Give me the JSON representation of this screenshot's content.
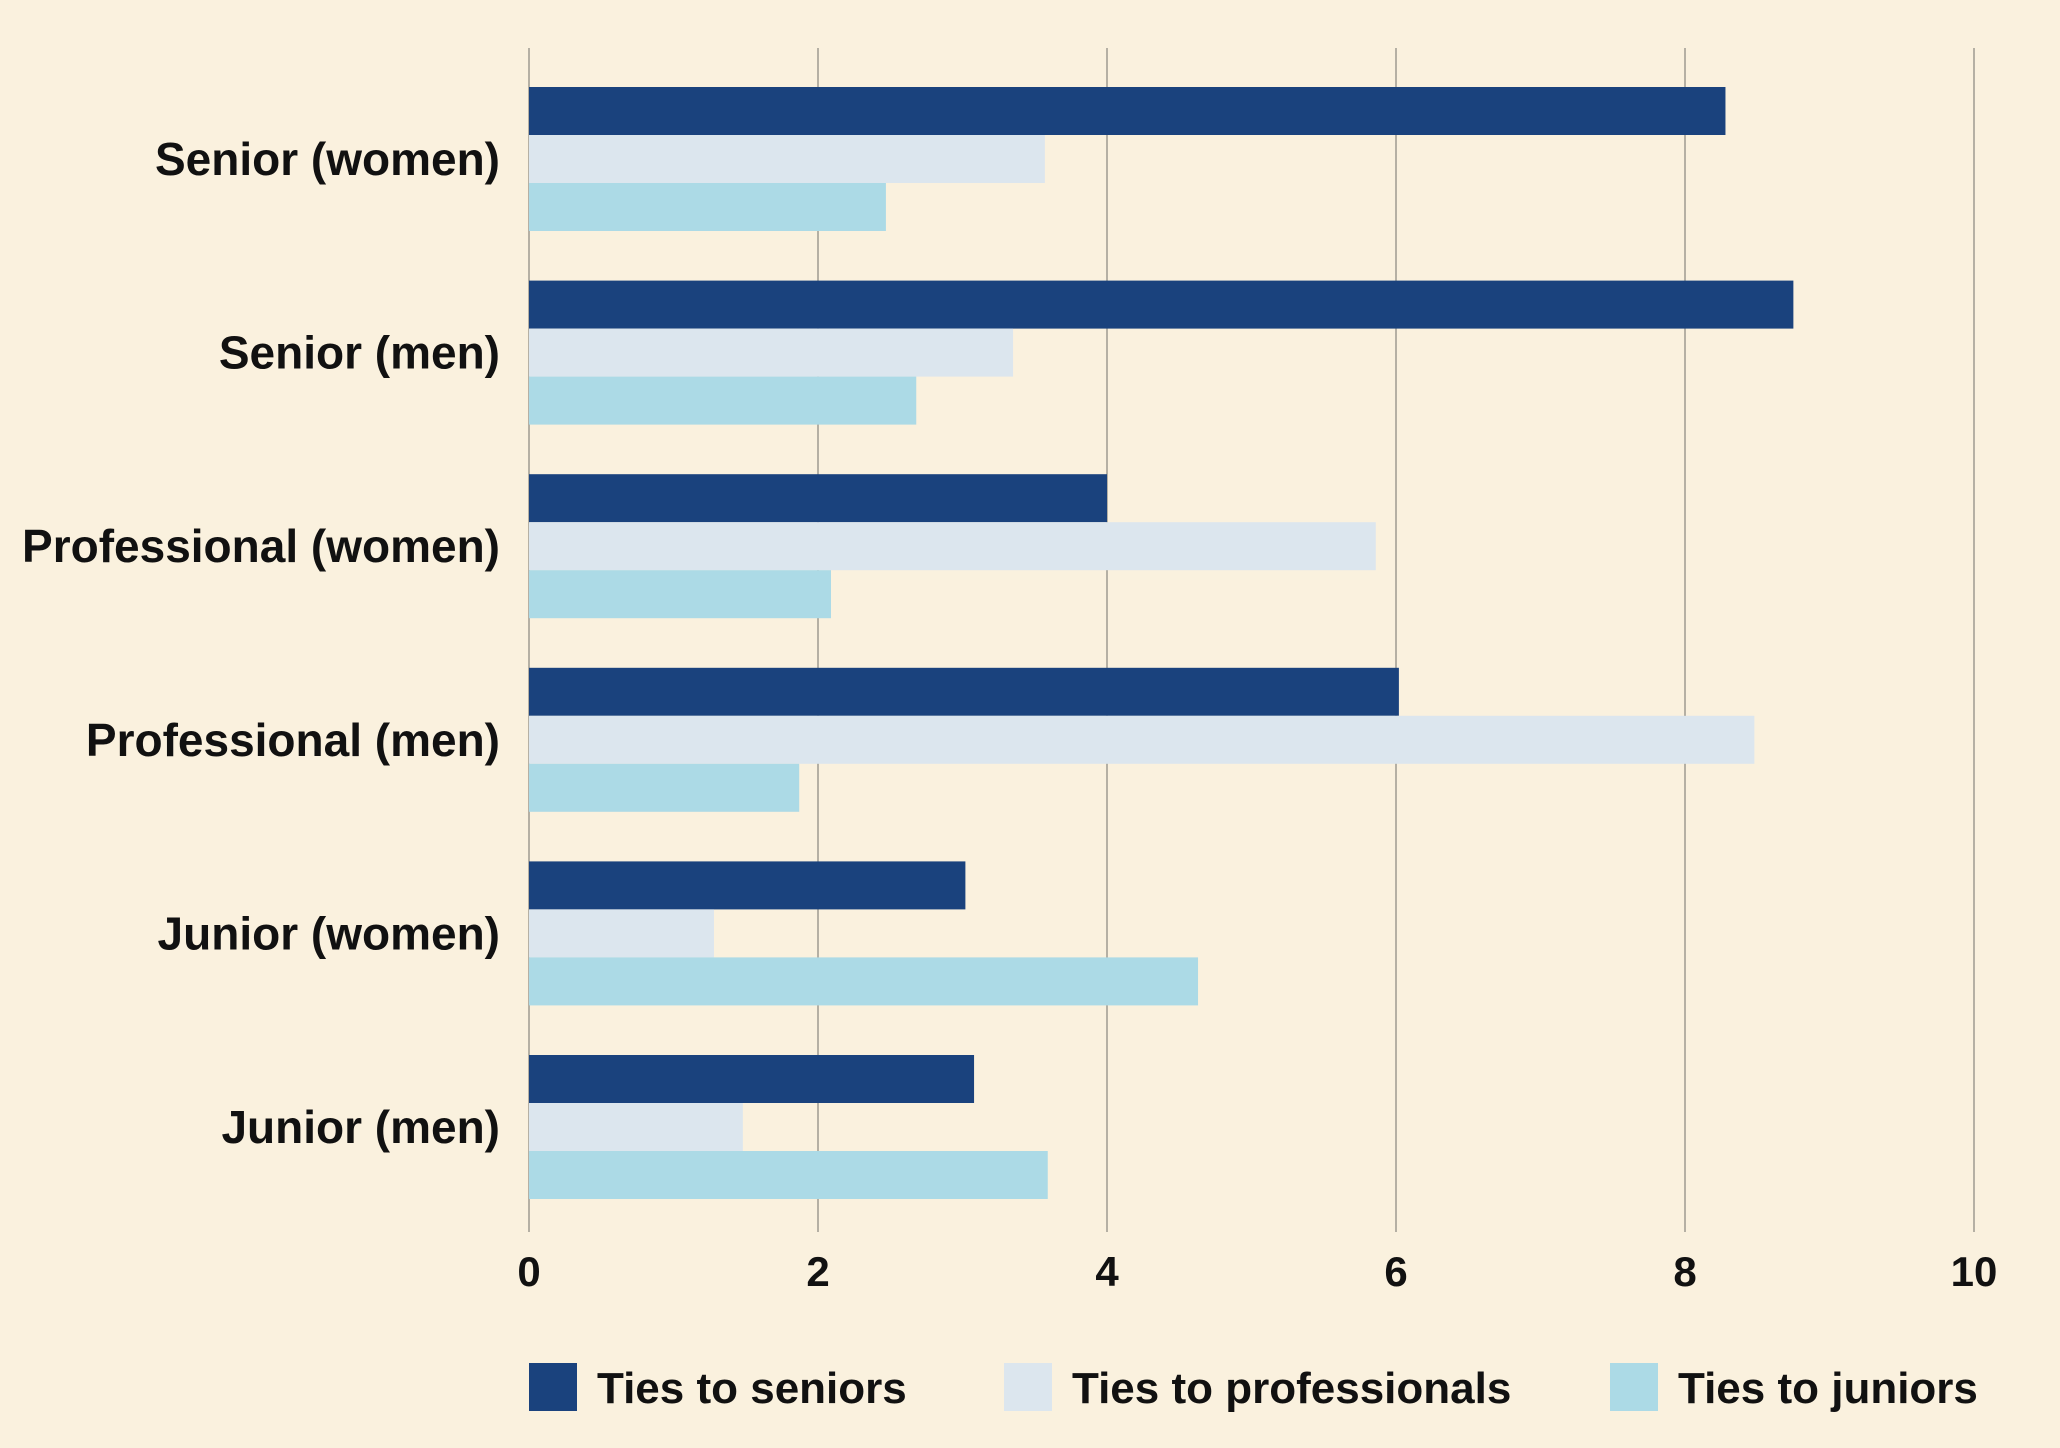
{
  "chart_data": {
    "type": "bar",
    "orientation": "horizontal",
    "categories": [
      "Senior (women)",
      "Senior (men)",
      "Professional (women)",
      "Professional (men)",
      "Junior (women)",
      "Junior (men)"
    ],
    "series": [
      {
        "name": "Ties to seniors",
        "color": "#1a427d",
        "values": [
          8.28,
          8.75,
          4.0,
          6.02,
          3.02,
          3.08
        ]
      },
      {
        "name": "Ties to professionals",
        "color": "#dce6ee",
        "values": [
          3.57,
          3.35,
          5.86,
          8.48,
          1.28,
          1.48
        ]
      },
      {
        "name": "Ties to juniors",
        "color": "#acdae6",
        "values": [
          2.47,
          2.68,
          2.09,
          1.87,
          4.63,
          3.59
        ]
      }
    ],
    "xlim": [
      0,
      10
    ],
    "xticks": [
      "0",
      "2",
      "4",
      "6",
      "8",
      "10"
    ],
    "grid": "vertical",
    "legend_position": "bottom",
    "background": "#faf1de",
    "grid_color": "#b5b0a4"
  }
}
